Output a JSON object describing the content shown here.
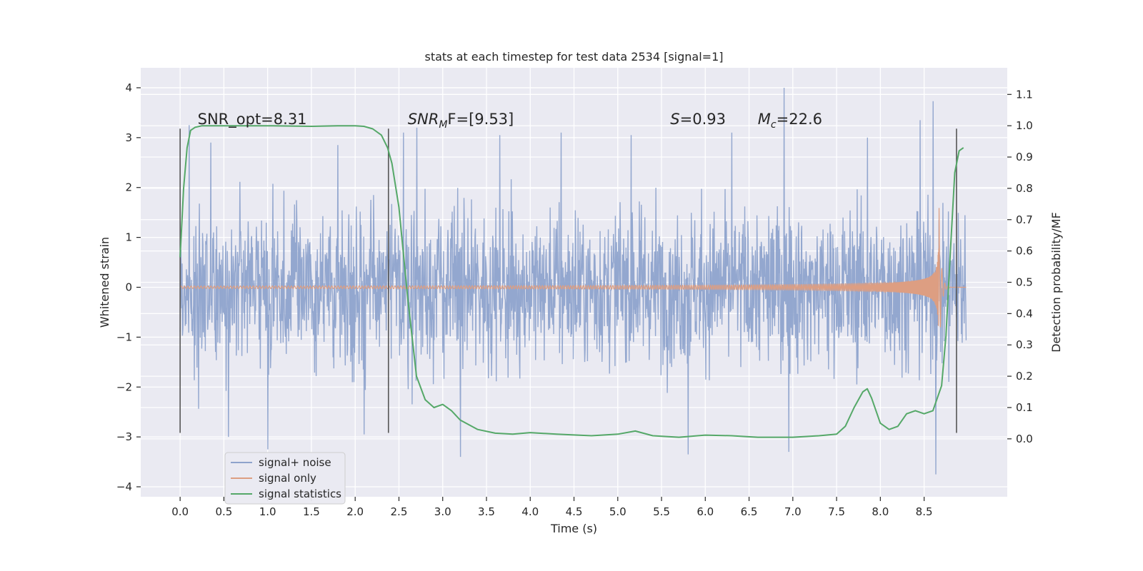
{
  "chart_data": {
    "type": "line",
    "title": "stats at each timestep for test data 2534 [signal=1]",
    "xlabel": "Time (s)",
    "ylabel_left": "Whitened strain",
    "ylabel_right": "Detection probability/MF",
    "xlim": [
      -0.45,
      9.45
    ],
    "ylim_left": [
      -4.2,
      4.4
    ],
    "ylim_right": [
      -0.185,
      1.185
    ],
    "x_ticks": [
      "0.0",
      "0.5",
      "1.0",
      "1.5",
      "2.0",
      "2.5",
      "3.0",
      "3.5",
      "4.0",
      "4.5",
      "5.0",
      "5.5",
      "6.0",
      "6.5",
      "7.0",
      "7.5",
      "8.0",
      "8.5"
    ],
    "y_ticks_left": [
      "−4",
      "−3",
      "−2",
      "−1",
      "0",
      "1",
      "2",
      "3",
      "4"
    ],
    "y_ticks_right": [
      "0.0",
      "0.1",
      "0.2",
      "0.3",
      "0.4",
      "0.5",
      "0.6",
      "0.7",
      "0.8",
      "0.9",
      "1.0",
      "1.1"
    ],
    "grid": true,
    "annotations": {
      "snr_opt": "SNR_opt=8.31",
      "snr_mf_sym": "SNR",
      "snr_mf_sub": "M",
      "snr_mf_rest": "F=[9.53]",
      "s_sym": "S",
      "s_rest": "=0.93",
      "mc_sym": "M",
      "mc_sub": "c",
      "mc_rest": "=22.6"
    },
    "vertical_markers_s": [
      0.0,
      2.38,
      8.87
    ],
    "marker_range_left": [
      -2.92,
      3.18
    ],
    "series": [
      {
        "name": "signal+ noise",
        "color": "#8ea3cc",
        "axis": "left",
        "x_range": [
          0.0,
          8.98
        ],
        "typical_envelope": [
          -1.6,
          1.6
        ],
        "extreme_range": [
          -3.8,
          4.0
        ],
        "peaks": [
          {
            "x": 0.1,
            "y": 3.25
          },
          {
            "x": 0.35,
            "y": 2.9
          },
          {
            "x": 0.55,
            "y": -3.0
          },
          {
            "x": 1.0,
            "y": -3.25
          },
          {
            "x": 1.8,
            "y": 2.85
          },
          {
            "x": 2.1,
            "y": -2.95
          },
          {
            "x": 2.55,
            "y": 3.1
          },
          {
            "x": 2.7,
            "y": 3.2
          },
          {
            "x": 3.2,
            "y": -3.4
          },
          {
            "x": 3.65,
            "y": 3.05
          },
          {
            "x": 4.35,
            "y": 3.1
          },
          {
            "x": 5.15,
            "y": 3.05
          },
          {
            "x": 5.8,
            "y": -3.35
          },
          {
            "x": 6.3,
            "y": 3.1
          },
          {
            "x": 6.9,
            "y": 4.02
          },
          {
            "x": 6.95,
            "y": -3.3
          },
          {
            "x": 7.85,
            "y": 3.0
          },
          {
            "x": 8.45,
            "y": 3.35
          },
          {
            "x": 8.6,
            "y": 3.73
          },
          {
            "x": 8.63,
            "y": -3.75
          }
        ]
      },
      {
        "name": "signal only",
        "color": "#dd9e82",
        "axis": "left",
        "description": "chirp",
        "t_merge": 8.67,
        "t_end": 8.98,
        "peak_amplitude": 1.65
      },
      {
        "name": "signal statistics",
        "color": "#55a868",
        "axis": "right",
        "x": [
          0.0,
          0.04,
          0.08,
          0.12,
          0.17,
          0.25,
          0.5,
          1.0,
          1.5,
          1.8,
          2.0,
          2.1,
          2.2,
          2.3,
          2.37,
          2.42,
          2.5,
          2.6,
          2.7,
          2.8,
          2.9,
          3.0,
          3.1,
          3.2,
          3.4,
          3.6,
          3.8,
          4.0,
          4.3,
          4.7,
          5.0,
          5.2,
          5.4,
          5.7,
          6.0,
          6.3,
          6.6,
          7.0,
          7.3,
          7.5,
          7.6,
          7.7,
          7.8,
          7.85,
          7.9,
          8.0,
          8.1,
          8.2,
          8.3,
          8.4,
          8.5,
          8.6,
          8.7,
          8.75,
          8.8,
          8.85,
          8.9,
          8.95
        ],
        "values": [
          0.58,
          0.8,
          0.93,
          0.985,
          0.995,
          1.0,
          1.0,
          1.0,
          0.998,
          1.0,
          1.0,
          0.998,
          0.99,
          0.97,
          0.93,
          0.88,
          0.74,
          0.45,
          0.2,
          0.125,
          0.1,
          0.11,
          0.09,
          0.06,
          0.03,
          0.018,
          0.015,
          0.02,
          0.015,
          0.01,
          0.015,
          0.025,
          0.01,
          0.005,
          0.012,
          0.01,
          0.005,
          0.005,
          0.01,
          0.015,
          0.04,
          0.1,
          0.15,
          0.16,
          0.13,
          0.05,
          0.03,
          0.04,
          0.08,
          0.09,
          0.08,
          0.09,
          0.17,
          0.33,
          0.6,
          0.85,
          0.92,
          0.93
        ]
      }
    ],
    "legend_position": "lower-left"
  }
}
